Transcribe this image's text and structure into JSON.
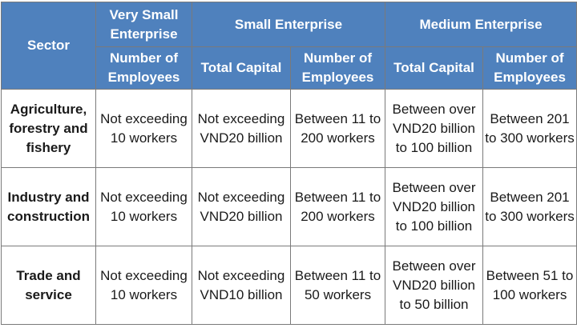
{
  "header": {
    "sector": "Sector",
    "very_small": "Very Small Enterprise",
    "small": "Small Enterprise",
    "medium": "Medium Enterprise",
    "sub": {
      "vse_employees": "Number of Employees",
      "small_capital": "Total Capital",
      "small_employees": "Number of Employees",
      "medium_capital": "Total Capital",
      "medium_employees": "Number of Employees"
    }
  },
  "rows": [
    {
      "sector": "Agriculture, forestry and fishery",
      "vse_employees": "Not exceeding 10 workers",
      "small_capital": "Not exceeding VND20 billion",
      "small_employees": "Between 11 to 200 workers",
      "medium_capital": "Between over VND20 billion to 100 billion",
      "medium_employees": "Between 201 to 300 workers"
    },
    {
      "sector": "Industry and construction",
      "vse_employees": "Not exceeding 10 workers",
      "small_capital": "Not exceeding VND20 billion",
      "small_employees": "Between 11 to 200 workers",
      "medium_capital": "Between over VND20 billion to 100 billion",
      "medium_employees": "Between 201 to 300 workers"
    },
    {
      "sector": "Trade and service",
      "vse_employees": "Not exceeding 10 workers",
      "small_capital": "Not exceeding VND10 billion",
      "small_employees": "Between 11 to 50 workers",
      "medium_capital": "Between over VND20 billion to 50 billion",
      "medium_employees": "Between 51 to 100 workers"
    }
  ],
  "colors": {
    "header_bg": "#4f81bd",
    "header_text": "#ffffff",
    "border": "#7a7a7a",
    "body_text": "#1a1a1a"
  }
}
